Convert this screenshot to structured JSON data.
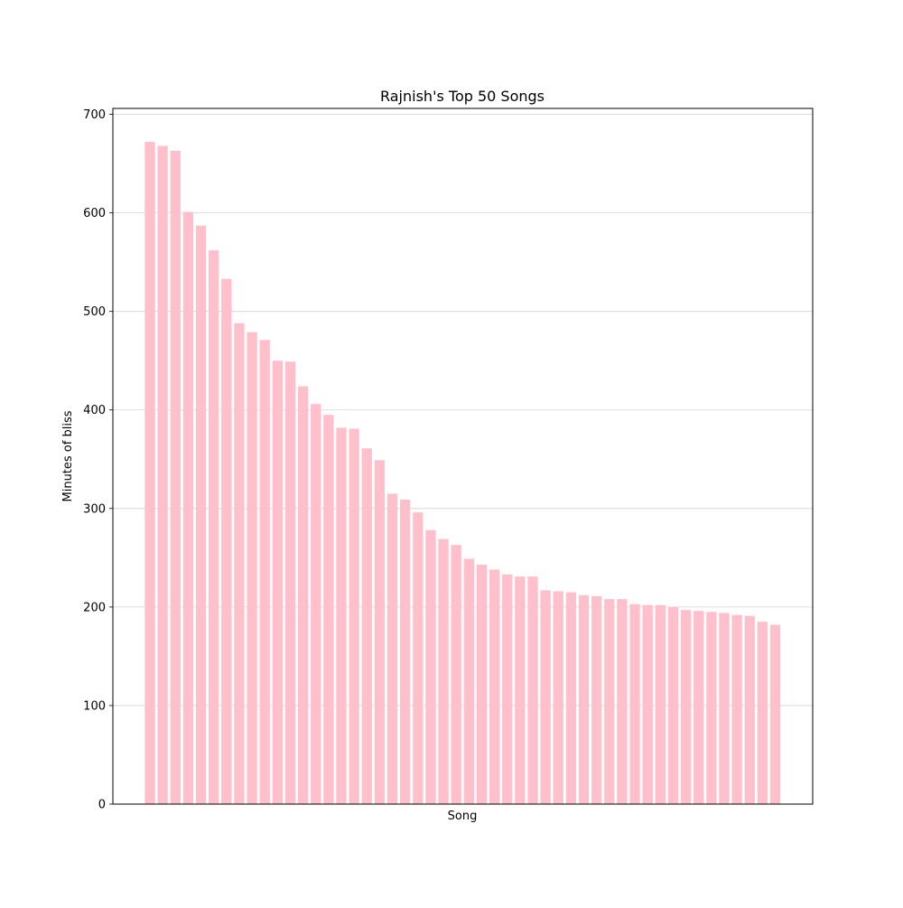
{
  "chart_data": {
    "type": "bar",
    "title": "Rajnish's Top 50 Songs",
    "xlabel": "Song",
    "ylabel": "Minutes of bliss",
    "ylim": [
      0,
      706
    ],
    "yticks": [
      0,
      100,
      200,
      300,
      400,
      500,
      600,
      700
    ],
    "grid": "horizontal",
    "legend": "none",
    "bar_color": "#ffc0cb",
    "values": [
      672,
      668,
      663,
      601,
      587,
      562,
      533,
      488,
      479,
      471,
      450,
      449,
      424,
      406,
      395,
      382,
      381,
      361,
      349,
      315,
      309,
      296,
      278,
      269,
      263,
      249,
      243,
      238,
      233,
      231,
      231,
      217,
      216,
      215,
      212,
      211,
      208,
      208,
      203,
      202,
      202,
      200,
      197,
      196,
      195,
      194,
      192,
      191,
      185,
      182
    ]
  }
}
